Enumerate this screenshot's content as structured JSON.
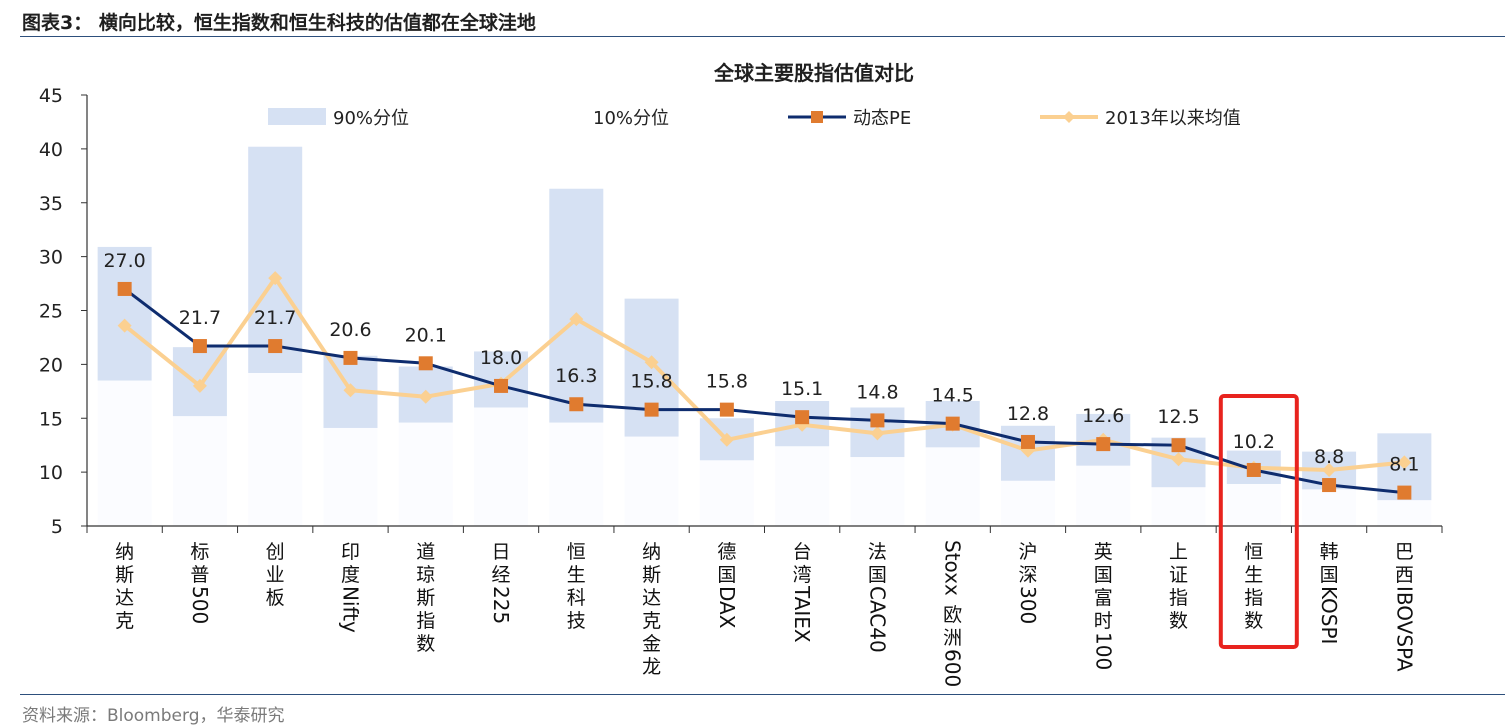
{
  "figure_title": "图表3：  横向比较，恒生指数和恒生科技的估值都在全球洼地",
  "source": "资料来源：Bloomberg，华泰研究",
  "colors": {
    "band": "#d6e1f3",
    "pe_line": "#0e2c6e",
    "pe_marker": "#e07b2f",
    "avg_line": "#fbd091",
    "highlight": "#e8231e"
  },
  "chart_data": {
    "type": "bar",
    "title": "全球主要股指估值对比",
    "ylim": [
      5,
      45
    ],
    "yticks": [
      5,
      10,
      15,
      20,
      25,
      30,
      35,
      40,
      45
    ],
    "legend": {
      "p90": "90%分位",
      "p10": "10%分位",
      "pe": "动态PE",
      "avg": "2013年以来均值",
      "placement": "top"
    },
    "categories": [
      "纳斯达克",
      "标普500",
      "创业板",
      "印度Nifty",
      "道琼斯指数",
      "日经225",
      "恒生科技",
      "纳斯达克金龙",
      "德国DAX",
      "台湾TAIEX",
      "法国CAC40",
      "Stoxx欧洲600",
      "沪深300",
      "英国富时100",
      "上证指数",
      "恒生指数",
      "韩国KOSPI",
      "巴西IBOVSPA"
    ],
    "p90": [
      30.9,
      21.6,
      40.2,
      20.8,
      19.8,
      21.2,
      36.3,
      26.1,
      15.0,
      16.6,
      16.0,
      16.6,
      14.3,
      15.4,
      13.2,
      12.0,
      11.9,
      13.6
    ],
    "p10": [
      18.5,
      15.2,
      19.2,
      14.1,
      14.6,
      16.0,
      14.6,
      13.3,
      11.1,
      12.4,
      11.4,
      12.3,
      9.2,
      10.6,
      8.6,
      8.9,
      8.4,
      7.4
    ],
    "pe": [
      27.0,
      21.7,
      21.7,
      20.6,
      20.1,
      18.0,
      16.3,
      15.8,
      15.8,
      15.1,
      14.8,
      14.5,
      12.8,
      12.6,
      12.5,
      10.2,
      8.8,
      8.1
    ],
    "pe_labels": [
      "27.0",
      "21.7",
      "21.7",
      "20.6",
      "20.1",
      "18.0",
      "16.3",
      "15.8",
      "15.8",
      "15.1",
      "14.8",
      "14.5",
      "12.8",
      "12.6",
      "12.5",
      "10.2",
      "8.8",
      "8.1"
    ],
    "avg": [
      23.6,
      18.0,
      28.0,
      17.6,
      17.0,
      18.2,
      24.2,
      20.2,
      13.0,
      14.4,
      13.6,
      14.4,
      12.0,
      13.0,
      11.2,
      10.4,
      10.2,
      10.9
    ],
    "highlight_category": "恒生指数"
  }
}
